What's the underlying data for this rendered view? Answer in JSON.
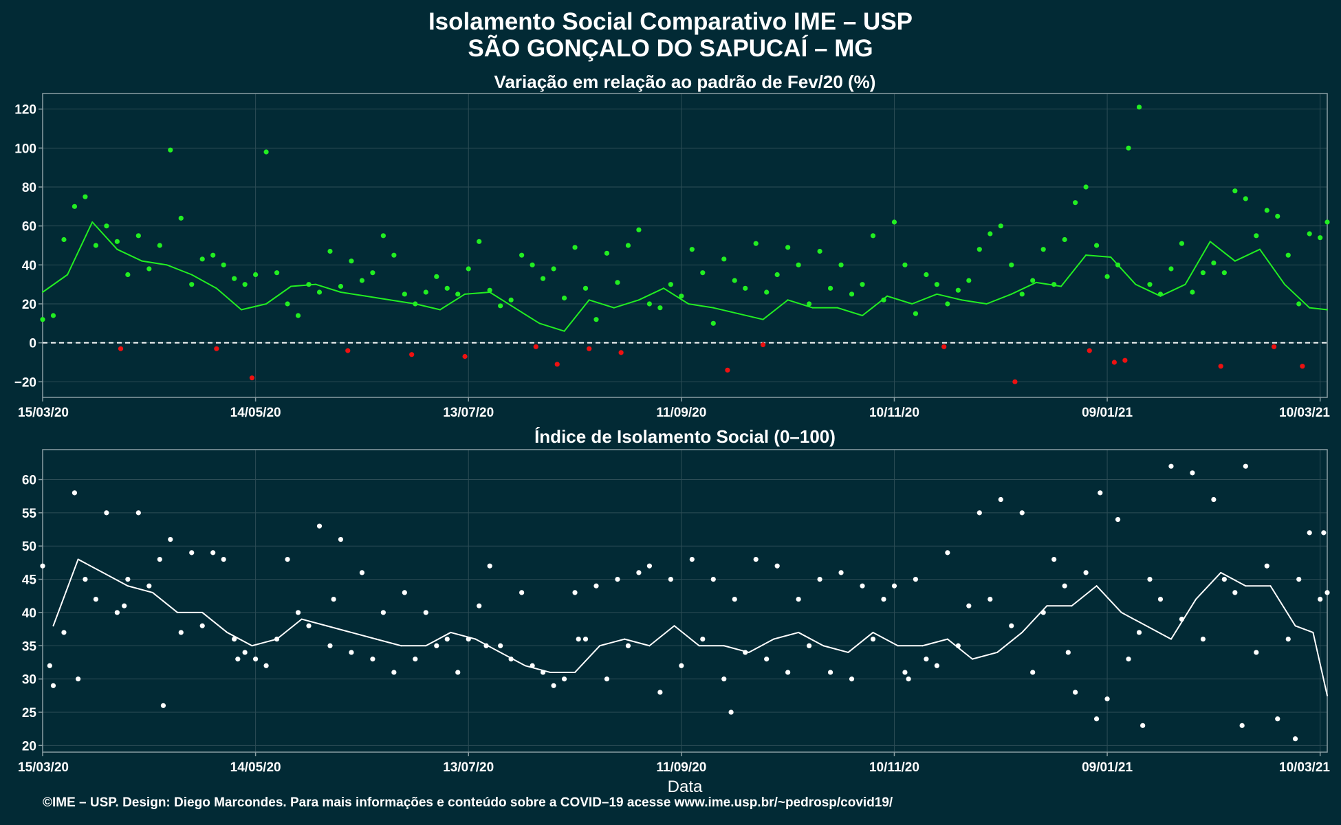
{
  "header": {
    "title": "Isolamento Social Comparativo IME – USP",
    "subtitle": "SÃO GONÇALO DO SAPUCAÍ – MG"
  },
  "footer": {
    "credit": "©IME – USP. Design: Diego Marcondes. Para mais informações e conteúdo sobre a COVID–19 acesse www.ime.usp.br/~pedrosp/covid19/"
  },
  "colors": {
    "background": "#022a35",
    "panel_border": "#8a9ea3",
    "grid": "#2d4d56",
    "positive": "#22ee22",
    "negative": "#ee1111",
    "index_series": "#ffffff"
  },
  "chart_data": [
    {
      "type": "scatter",
      "title": "Variação em relação ao padrão de Fev/20 (%)",
      "xlabel": "",
      "ylabel": "",
      "x_ticks": [
        "15/03/20",
        "14/05/20",
        "13/07/20",
        "11/09/20",
        "10/11/20",
        "09/01/21",
        "10/03/21"
      ],
      "x_range": [
        "2020-03-15",
        "2021-03-12"
      ],
      "ylim": [
        -28,
        128
      ],
      "y_ticks": [
        -20,
        0,
        20,
        40,
        60,
        80,
        100,
        120
      ],
      "reference_line": 0,
      "grid": true,
      "color_rule": "green when value >= 0, red when value < 0",
      "series": [
        {
          "kind": "points",
          "x": [
            "2020-03-15",
            "2020-03-18",
            "2020-03-21",
            "2020-03-24",
            "2020-03-27",
            "2020-03-30",
            "2020-04-02",
            "2020-04-05",
            "2020-04-08",
            "2020-04-11",
            "2020-04-14",
            "2020-04-17",
            "2020-04-20",
            "2020-04-23",
            "2020-04-26",
            "2020-04-29",
            "2020-05-02",
            "2020-05-05",
            "2020-05-08",
            "2020-05-11",
            "2020-05-14",
            "2020-05-17",
            "2020-05-20",
            "2020-05-23",
            "2020-05-26",
            "2020-05-29",
            "2020-06-01",
            "2020-06-04",
            "2020-06-07",
            "2020-06-10",
            "2020-06-13",
            "2020-06-16",
            "2020-06-19",
            "2020-06-22",
            "2020-06-25",
            "2020-06-28",
            "2020-07-01",
            "2020-07-04",
            "2020-07-07",
            "2020-07-10",
            "2020-07-13",
            "2020-07-16",
            "2020-07-19",
            "2020-07-22",
            "2020-07-25",
            "2020-07-28",
            "2020-07-31",
            "2020-08-03",
            "2020-08-06",
            "2020-08-09",
            "2020-08-12",
            "2020-08-15",
            "2020-08-18",
            "2020-08-21",
            "2020-08-24",
            "2020-08-27",
            "2020-08-30",
            "2020-09-02",
            "2020-09-05",
            "2020-09-08",
            "2020-09-11",
            "2020-09-14",
            "2020-09-17",
            "2020-09-20",
            "2020-09-23",
            "2020-09-26",
            "2020-09-29",
            "2020-10-02",
            "2020-10-05",
            "2020-10-08",
            "2020-10-11",
            "2020-10-14",
            "2020-10-17",
            "2020-10-20",
            "2020-10-23",
            "2020-10-26",
            "2020-10-29",
            "2020-11-01",
            "2020-11-04",
            "2020-11-07",
            "2020-11-10",
            "2020-11-13",
            "2020-11-16",
            "2020-11-19",
            "2020-11-22",
            "2020-11-25",
            "2020-11-28",
            "2020-12-01",
            "2020-12-04",
            "2020-12-07",
            "2020-12-10",
            "2020-12-13",
            "2020-12-16",
            "2020-12-19",
            "2020-12-22",
            "2020-12-25",
            "2020-12-28",
            "2020-12-31",
            "2021-01-03",
            "2021-01-06",
            "2021-01-09",
            "2021-01-12",
            "2021-01-15",
            "2021-01-18",
            "2021-01-21",
            "2021-01-24",
            "2021-01-27",
            "2021-01-30",
            "2021-02-02",
            "2021-02-05",
            "2021-02-08",
            "2021-02-11",
            "2021-02-14",
            "2021-02-17",
            "2021-02-20",
            "2021-02-23",
            "2021-02-26",
            "2021-03-01",
            "2021-03-04",
            "2021-03-07",
            "2021-03-10",
            "2021-03-12",
            "2020-04-06",
            "2020-05-03",
            "2020-05-13",
            "2020-06-09",
            "2020-06-27",
            "2020-07-12",
            "2020-08-01",
            "2020-08-07",
            "2020-08-16",
            "2020-08-25",
            "2020-09-24",
            "2020-10-04",
            "2020-11-24",
            "2020-12-14",
            "2021-01-04",
            "2021-01-11",
            "2021-01-14",
            "2021-02-10",
            "2021-02-25",
            "2021-03-05"
          ],
          "y": [
            12,
            14,
            53,
            70,
            75,
            50,
            60,
            52,
            35,
            55,
            38,
            50,
            99,
            64,
            30,
            43,
            45,
            40,
            33,
            30,
            35,
            98,
            36,
            20,
            14,
            30,
            26,
            47,
            29,
            42,
            32,
            36,
            55,
            45,
            25,
            20,
            26,
            34,
            28,
            25,
            38,
            52,
            27,
            19,
            22,
            45,
            40,
            33,
            38,
            23,
            49,
            28,
            12,
            46,
            31,
            50,
            58,
            20,
            18,
            30,
            24,
            48,
            36,
            10,
            43,
            32,
            28,
            51,
            26,
            35,
            49,
            40,
            20,
            47,
            28,
            40,
            25,
            30,
            55,
            22,
            62,
            40,
            15,
            35,
            30,
            20,
            27,
            32,
            48,
            56,
            60,
            40,
            25,
            32,
            48,
            30,
            53,
            72,
            80,
            50,
            34,
            40,
            100,
            121,
            30,
            25,
            38,
            51,
            26,
            36,
            41,
            36,
            78,
            74,
            55,
            68,
            65,
            45,
            20,
            56,
            54,
            62,
            -3,
            -3,
            -18,
            -4,
            -6,
            -7,
            -2,
            -11,
            -3,
            -5,
            -14,
            -1,
            -2,
            -20,
            -4,
            -10,
            -9,
            -12,
            -2,
            -12
          ]
        },
        {
          "kind": "line",
          "x": [
            "2020-03-15",
            "2020-03-22",
            "2020-03-29",
            "2020-04-05",
            "2020-04-12",
            "2020-04-19",
            "2020-04-26",
            "2020-05-03",
            "2020-05-10",
            "2020-05-17",
            "2020-05-24",
            "2020-05-31",
            "2020-06-07",
            "2020-06-14",
            "2020-06-21",
            "2020-06-28",
            "2020-07-05",
            "2020-07-12",
            "2020-07-19",
            "2020-07-26",
            "2020-08-02",
            "2020-08-09",
            "2020-08-16",
            "2020-08-23",
            "2020-08-30",
            "2020-09-06",
            "2020-09-13",
            "2020-09-20",
            "2020-09-27",
            "2020-10-04",
            "2020-10-11",
            "2020-10-18",
            "2020-10-25",
            "2020-11-01",
            "2020-11-08",
            "2020-11-15",
            "2020-11-22",
            "2020-11-29",
            "2020-12-06",
            "2020-12-13",
            "2020-12-20",
            "2020-12-27",
            "2021-01-03",
            "2021-01-10",
            "2021-01-17",
            "2021-01-24",
            "2021-01-31",
            "2021-02-07",
            "2021-02-14",
            "2021-02-21",
            "2021-02-28",
            "2021-03-07",
            "2021-03-12"
          ],
          "y": [
            26,
            35,
            62,
            48,
            42,
            40,
            35,
            28,
            17,
            20,
            29,
            30,
            26,
            24,
            22,
            20,
            17,
            25,
            26,
            18,
            10,
            6,
            22,
            18,
            22,
            28,
            20,
            18,
            15,
            12,
            22,
            18,
            18,
            14,
            24,
            20,
            25,
            22,
            20,
            25,
            31,
            29,
            45,
            44,
            30,
            24,
            30,
            52,
            42,
            48,
            30,
            18,
            17
          ]
        }
      ]
    },
    {
      "type": "scatter",
      "title": "Índice de Isolamento Social (0–100)",
      "xlabel": "Data",
      "ylabel": "",
      "x_ticks": [
        "15/03/20",
        "14/05/20",
        "13/07/20",
        "11/09/20",
        "10/11/20",
        "09/01/21",
        "10/03/21"
      ],
      "x_range": [
        "2020-03-15",
        "2021-03-12"
      ],
      "ylim": [
        19,
        64.5
      ],
      "y_ticks": [
        20,
        25,
        30,
        35,
        40,
        45,
        50,
        55,
        60
      ],
      "grid": true,
      "series": [
        {
          "kind": "points",
          "x": [
            "2020-03-15",
            "2020-03-18",
            "2020-03-21",
            "2020-03-24",
            "2020-03-27",
            "2020-03-30",
            "2020-04-02",
            "2020-04-05",
            "2020-04-08",
            "2020-04-11",
            "2020-04-14",
            "2020-04-17",
            "2020-04-20",
            "2020-04-23",
            "2020-04-26",
            "2020-04-29",
            "2020-05-02",
            "2020-05-05",
            "2020-05-08",
            "2020-05-11",
            "2020-05-14",
            "2020-05-17",
            "2020-05-20",
            "2020-05-23",
            "2020-05-26",
            "2020-05-29",
            "2020-06-01",
            "2020-06-04",
            "2020-06-07",
            "2020-06-10",
            "2020-06-13",
            "2020-06-16",
            "2020-06-19",
            "2020-06-22",
            "2020-06-25",
            "2020-06-28",
            "2020-07-01",
            "2020-07-04",
            "2020-07-07",
            "2020-07-10",
            "2020-07-13",
            "2020-07-16",
            "2020-07-19",
            "2020-07-22",
            "2020-07-25",
            "2020-07-28",
            "2020-07-31",
            "2020-08-03",
            "2020-08-06",
            "2020-08-09",
            "2020-08-12",
            "2020-08-15",
            "2020-08-18",
            "2020-08-21",
            "2020-08-24",
            "2020-08-27",
            "2020-08-30",
            "2020-09-02",
            "2020-09-05",
            "2020-09-08",
            "2020-09-11",
            "2020-09-14",
            "2020-09-17",
            "2020-09-20",
            "2020-09-23",
            "2020-09-26",
            "2020-09-29",
            "2020-10-02",
            "2020-10-05",
            "2020-10-08",
            "2020-10-11",
            "2020-10-14",
            "2020-10-17",
            "2020-10-20",
            "2020-10-23",
            "2020-10-26",
            "2020-10-29",
            "2020-11-01",
            "2020-11-04",
            "2020-11-07",
            "2020-11-10",
            "2020-11-13",
            "2020-11-16",
            "2020-11-19",
            "2020-11-22",
            "2020-11-25",
            "2020-11-28",
            "2020-12-01",
            "2020-12-04",
            "2020-12-07",
            "2020-12-10",
            "2020-12-13",
            "2020-12-16",
            "2020-12-19",
            "2020-12-22",
            "2020-12-25",
            "2020-12-28",
            "2020-12-31",
            "2021-01-03",
            "2021-01-06",
            "2021-01-09",
            "2021-01-12",
            "2021-01-15",
            "2021-01-18",
            "2021-01-21",
            "2021-01-24",
            "2021-01-27",
            "2021-01-30",
            "2021-02-02",
            "2021-02-05",
            "2021-02-08",
            "2021-02-11",
            "2021-02-14",
            "2021-02-17",
            "2021-02-20",
            "2021-02-23",
            "2021-02-26",
            "2021-03-01",
            "2021-03-04",
            "2021-03-07",
            "2021-03-10",
            "2021-03-12",
            "2020-03-17",
            "2020-03-25",
            "2020-04-07",
            "2020-04-18",
            "2020-05-09",
            "2020-06-05",
            "2020-07-18",
            "2020-08-13",
            "2020-09-25",
            "2020-11-14",
            "2020-12-29",
            "2021-01-07",
            "2021-01-19",
            "2021-02-16",
            "2021-03-03",
            "2021-03-11"
          ],
          "y": [
            47,
            29,
            37,
            58,
            45,
            42,
            55,
            40,
            45,
            55,
            44,
            48,
            51,
            37,
            49,
            38,
            49,
            48,
            36,
            34,
            33,
            32,
            36,
            48,
            40,
            38,
            53,
            35,
            51,
            34,
            46,
            33,
            40,
            31,
            43,
            33,
            40,
            35,
            36,
            31,
            36,
            41,
            47,
            35,
            33,
            43,
            32,
            31,
            29,
            30,
            43,
            36,
            44,
            30,
            45,
            35,
            46,
            47,
            28,
            45,
            32,
            48,
            36,
            45,
            30,
            42,
            34,
            48,
            33,
            47,
            31,
            42,
            35,
            45,
            31,
            46,
            30,
            44,
            36,
            42,
            44,
            31,
            45,
            33,
            32,
            49,
            35,
            41,
            55,
            42,
            57,
            38,
            55,
            31,
            40,
            48,
            44,
            28,
            46,
            24,
            27,
            54,
            33,
            37,
            45,
            42,
            62,
            39,
            61,
            36,
            57,
            45,
            43,
            62,
            34,
            47,
            24,
            36,
            45,
            52,
            42,
            43,
            32,
            30,
            41,
            26,
            33,
            42,
            35,
            36,
            25,
            30,
            34,
            58,
            23,
            23,
            21,
            52
          ]
        },
        {
          "kind": "line",
          "x": [
            "2020-03-18",
            "2020-03-25",
            "2020-04-01",
            "2020-04-08",
            "2020-04-15",
            "2020-04-22",
            "2020-04-29",
            "2020-05-06",
            "2020-05-13",
            "2020-05-20",
            "2020-05-27",
            "2020-06-03",
            "2020-06-10",
            "2020-06-17",
            "2020-06-24",
            "2020-07-01",
            "2020-07-08",
            "2020-07-15",
            "2020-07-22",
            "2020-07-29",
            "2020-08-05",
            "2020-08-12",
            "2020-08-19",
            "2020-08-26",
            "2020-09-02",
            "2020-09-09",
            "2020-09-16",
            "2020-09-23",
            "2020-09-30",
            "2020-10-07",
            "2020-10-14",
            "2020-10-21",
            "2020-10-28",
            "2020-11-04",
            "2020-11-11",
            "2020-11-18",
            "2020-11-25",
            "2020-12-02",
            "2020-12-09",
            "2020-12-16",
            "2020-12-23",
            "2020-12-30",
            "2021-01-06",
            "2021-01-13",
            "2021-01-20",
            "2021-01-27",
            "2021-02-03",
            "2021-02-10",
            "2021-02-17",
            "2021-02-24",
            "2021-03-03",
            "2021-03-08",
            "2021-03-12"
          ],
          "y": [
            38,
            48,
            46,
            44,
            43,
            40,
            40,
            37,
            35,
            36,
            39,
            38,
            37,
            36,
            35,
            35,
            37,
            36,
            34,
            32,
            31,
            31,
            35,
            36,
            35,
            38,
            35,
            35,
            34,
            36,
            37,
            35,
            34,
            37,
            35,
            35,
            36,
            33,
            34,
            37,
            41,
            41,
            44,
            40,
            38,
            36,
            42,
            46,
            44,
            44,
            38,
            37,
            27.5
          ]
        }
      ]
    }
  ]
}
